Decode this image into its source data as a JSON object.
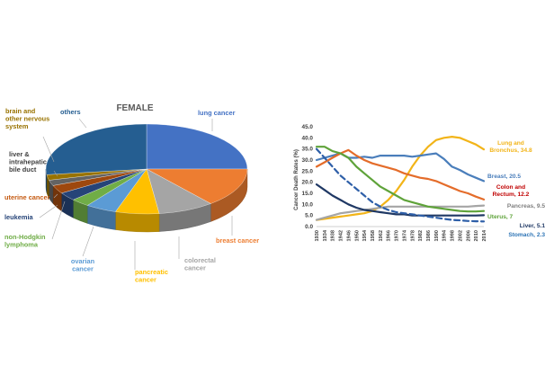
{
  "chart_data": [
    {
      "type": "pie",
      "title": "FEMALE",
      "slices": [
        {
          "label": "lung cancer",
          "value": 25,
          "color": "#4472C4"
        },
        {
          "label": "breast cancer",
          "value": 14,
          "color": "#ED7D31"
        },
        {
          "label": "colorectal cancer",
          "value": 9,
          "color": "#A5A5A5"
        },
        {
          "label": "pancreatic cancer",
          "value": 7,
          "color": "#FFC000"
        },
        {
          "label": "ovarian cancer",
          "value": 5,
          "color": "#5B9BD5"
        },
        {
          "label": "non-Hodgkin lymphoma",
          "value": 3,
          "color": "#70AD47"
        },
        {
          "label": "leukemia",
          "value": 3,
          "color": "#264478"
        },
        {
          "label": "uterine cancer",
          "value": 3,
          "color": "#9E480E"
        },
        {
          "label": "liver & intrahepatic bile duct",
          "value": 2,
          "color": "#636363"
        },
        {
          "label": "brain and other nervous system",
          "value": 2,
          "color": "#997300"
        },
        {
          "label": "others",
          "value": 27,
          "color": "#255E91"
        }
      ],
      "label_colors": {
        "lung cancer": "#4472C4",
        "breast cancer": "#ED7D31",
        "colorectal cancer": "#A5A5A5",
        "pancreatic cancer": "#FFC000",
        "ovarian cancer": "#5B9BD5",
        "non-Hodgkin lymphoma": "#70AD47",
        "leukemia": "#264478",
        "uterine cancer": "#C55A11",
        "liver & intrahepatic bile duct": "#404040",
        "brain and other nervous system": "#997300",
        "others": "#255E91"
      }
    },
    {
      "type": "line",
      "ylabel": "Cancer Death Rates (%)",
      "ylim": [
        0,
        45
      ],
      "yticks": [
        "0.0",
        "5.0",
        "10.0",
        "15.0",
        "20.0",
        "25.0",
        "30.0",
        "35.0",
        "40.0",
        "45.0"
      ],
      "xticks": [
        "1930",
        "1934",
        "1938",
        "1942",
        "1946",
        "1950",
        "1954",
        "1958",
        "1962",
        "1966",
        "1970",
        "1974",
        "1978",
        "1982",
        "1986",
        "1990",
        "1994",
        "1998",
        "2002",
        "2006",
        "2010",
        "2014"
      ],
      "x": [
        1930,
        1934,
        1938,
        1942,
        1946,
        1950,
        1954,
        1958,
        1962,
        1966,
        1970,
        1974,
        1978,
        1982,
        1986,
        1990,
        1994,
        1998,
        2002,
        2006,
        2010,
        2014
      ],
      "series": [
        {
          "name": "Lung and Bronchus, 34.8",
          "color": "#F2B418",
          "dash": false,
          "values": [
            3,
            3.5,
            4,
            4.5,
            5,
            5.5,
            6,
            7,
            9,
            12,
            16,
            21,
            27,
            32,
            36,
            39,
            40,
            40.5,
            40,
            38.5,
            37,
            34.8
          ]
        },
        {
          "name": "Breast, 20.5",
          "color": "#4A7EBB",
          "dash": false,
          "values": [
            30,
            31,
            32,
            33,
            31,
            31,
            31.5,
            31,
            32,
            32,
            32,
            32,
            31.5,
            32,
            32.5,
            33,
            30.5,
            27,
            25.5,
            23.5,
            22,
            20.5
          ]
        },
        {
          "name": "Colon and Rectum, 12.2",
          "color": "#E46C2A",
          "dash": false,
          "values": [
            27,
            29,
            31,
            33,
            34.5,
            32,
            30,
            28.5,
            27.5,
            26.5,
            25.5,
            24,
            23,
            22,
            21.5,
            20.5,
            19,
            17.5,
            16,
            15,
            13.5,
            12.2
          ]
        },
        {
          "name": "Pancreas, 9.5",
          "color": "#A5A5A5",
          "dash": false,
          "values": [
            3,
            4,
            5,
            6,
            6.5,
            7,
            7.5,
            8,
            8.5,
            9,
            9,
            9,
            9,
            9,
            9,
            9,
            9,
            9,
            9,
            9,
            9.3,
            9.5
          ]
        },
        {
          "name": "Uterus, 7",
          "color": "#5FA33A",
          "dash": false,
          "values": [
            36,
            36,
            34,
            33,
            31,
            27,
            24,
            21,
            18,
            16,
            14,
            12,
            11,
            10,
            9,
            8.5,
            8,
            7.5,
            7,
            6.8,
            6.8,
            7
          ]
        },
        {
          "name": "Liver, 5.1",
          "color": "#1F3864",
          "dash": false,
          "values": [
            19,
            16.5,
            14,
            12,
            10,
            8.5,
            7.5,
            7,
            6.5,
            6,
            5.5,
            5.5,
            5,
            5,
            5,
            5,
            5,
            5,
            5,
            5,
            5,
            5.1
          ]
        },
        {
          "name": "Stomach, 2.3",
          "color": "#2E5FA8",
          "dash": true,
          "values": [
            35,
            31,
            27,
            23,
            20,
            17,
            14,
            11,
            9,
            7.5,
            6.5,
            6,
            5.5,
            5,
            4.5,
            4,
            3.5,
            3,
            2.8,
            2.5,
            2.4,
            2.3
          ]
        }
      ],
      "series_label_colors": {
        "Lung and Bronchus, 34.8": "#F2B418",
        "Breast, 20.5": "#4A7EBB",
        "Colon and Rectum, 12.2": "#C00000",
        "Pancreas, 9.5": "#7F7F7F",
        "Uterus, 7": "#5FA33A",
        "Liver, 5.1": "#1F3864",
        "Stomach, 2.3": "#2E75B6"
      },
      "grid": false
    }
  ]
}
